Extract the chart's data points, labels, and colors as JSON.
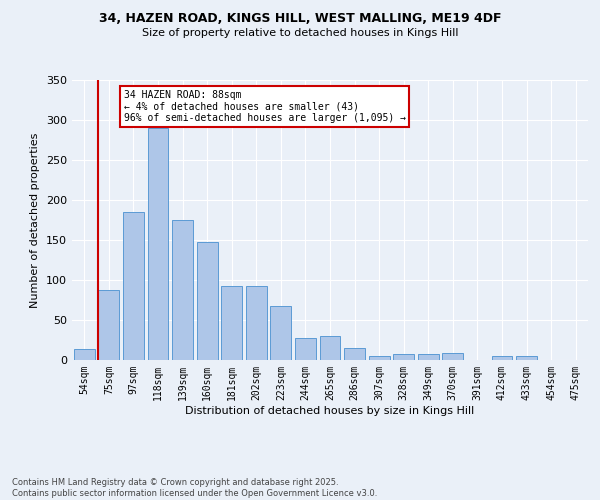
{
  "title_line1": "34, HAZEN ROAD, KINGS HILL, WEST MALLING, ME19 4DF",
  "title_line2": "Size of property relative to detached houses in Kings Hill",
  "xlabel": "Distribution of detached houses by size in Kings Hill",
  "ylabel": "Number of detached properties",
  "footnote": "Contains HM Land Registry data © Crown copyright and database right 2025.\nContains public sector information licensed under the Open Government Licence v3.0.",
  "bins": [
    "54sqm",
    "75sqm",
    "97sqm",
    "118sqm",
    "139sqm",
    "160sqm",
    "181sqm",
    "202sqm",
    "223sqm",
    "244sqm",
    "265sqm",
    "286sqm",
    "307sqm",
    "328sqm",
    "349sqm",
    "370sqm",
    "391sqm",
    "412sqm",
    "433sqm",
    "454sqm",
    "475sqm"
  ],
  "values": [
    14,
    88,
    185,
    290,
    175,
    148,
    92,
    92,
    68,
    27,
    30,
    15,
    5,
    7,
    7,
    9,
    0,
    5,
    5,
    0,
    0
  ],
  "bar_color": "#aec6e8",
  "bar_edge_color": "#5b9bd5",
  "background_color": "#eaf0f8",
  "grid_color": "#ffffff",
  "vline_color": "#cc0000",
  "annotation_text": "34 HAZEN ROAD: 88sqm\n← 4% of detached houses are smaller (43)\n96% of semi-detached houses are larger (1,095) →",
  "annotation_box_color": "#ffffff",
  "annotation_box_edge": "#cc0000",
  "ylim": [
    0,
    350
  ],
  "yticks": [
    0,
    50,
    100,
    150,
    200,
    250,
    300,
    350
  ]
}
